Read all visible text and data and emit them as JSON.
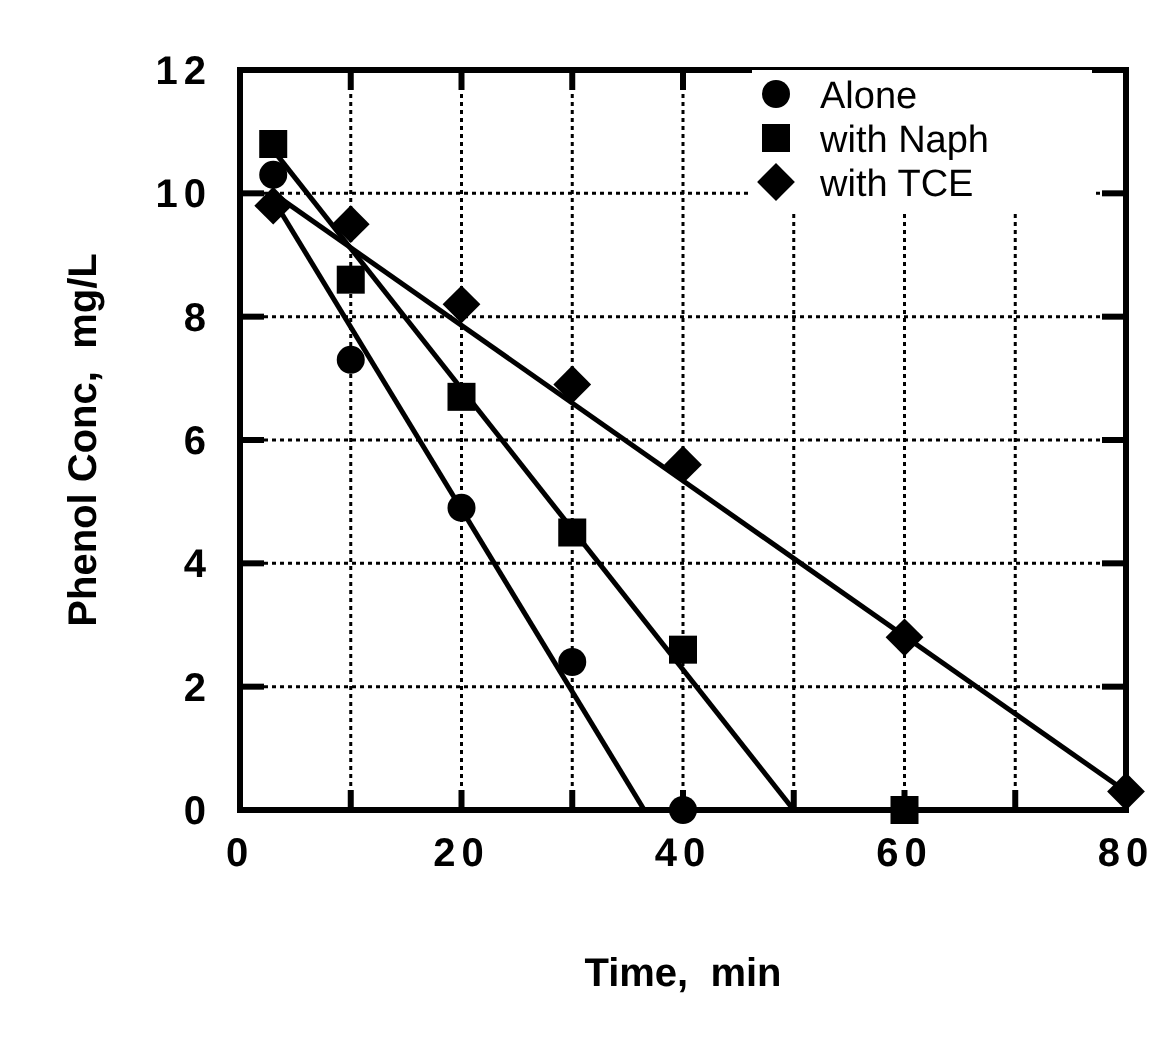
{
  "chart_data": {
    "type": "scatter",
    "xlabel": "Time,  min",
    "ylabel": "Phenol Conc,  mg/L",
    "xlim": [
      0,
      80
    ],
    "ylim": [
      0,
      12
    ],
    "xticks": [
      0,
      {
        "value": 10,
        "label": null
      },
      20,
      {
        "value": 30,
        "label": null
      },
      40,
      {
        "value": 50,
        "label": null
      },
      60,
      {
        "value": 70,
        "label": null
      },
      80
    ],
    "yticks": [
      0,
      2,
      4,
      6,
      8,
      10,
      12
    ],
    "grid": true,
    "legend": "top right",
    "series": [
      {
        "name": "Alone",
        "marker": "circle",
        "color": "#000000",
        "x": [
          3,
          10,
          20,
          30,
          40
        ],
        "values": [
          10.3,
          7.3,
          4.9,
          2.4,
          0
        ]
      },
      {
        "name": "with Naph",
        "marker": "square",
        "color": "#000000",
        "x": [
          3,
          10,
          20,
          30,
          40,
          60
        ],
        "values": [
          10.8,
          8.6,
          6.7,
          4.5,
          2.6,
          0
        ]
      },
      {
        "name": "with TCE",
        "marker": "diamond",
        "color": "#000000",
        "x": [
          3,
          10,
          20,
          30,
          40,
          60,
          80
        ],
        "values": [
          9.8,
          9.5,
          8.2,
          6.9,
          5.6,
          2.8,
          0.3
        ]
      },
      {
        "type": "line",
        "marker": "none",
        "color": "#000000",
        "x": [
          3,
          36.5
        ],
        "values": [
          9.9,
          0
        ]
      },
      {
        "type": "line",
        "marker": "none",
        "color": "#000000",
        "x": [
          3,
          50
        ],
        "values": [
          10.7,
          0
        ]
      },
      {
        "type": "line",
        "marker": "none",
        "color": "#000000",
        "x": [
          3,
          80
        ],
        "values": [
          10.0,
          0.3
        ]
      }
    ]
  }
}
